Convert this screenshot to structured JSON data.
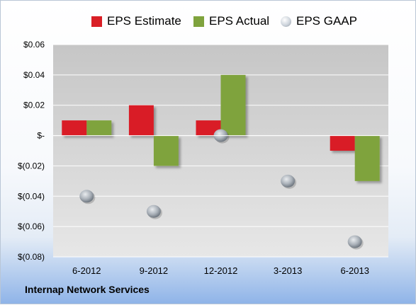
{
  "company": "Internap Network Services",
  "chart_data": {
    "type": "bar",
    "categories": [
      "6-2012",
      "9-2012",
      "12-2012",
      "3-2013",
      "6-2013"
    ],
    "series": [
      {
        "name": "EPS Estimate",
        "kind": "bar",
        "color": "#d91f26",
        "values": [
          0.01,
          0.02,
          0.01,
          null,
          -0.01
        ]
      },
      {
        "name": "EPS Actual",
        "kind": "bar",
        "color": "#7fa33d",
        "values": [
          0.01,
          -0.02,
          0.04,
          null,
          -0.03
        ]
      },
      {
        "name": "EPS GAAP",
        "kind": "marker",
        "color": "#b8c0c9",
        "values": [
          -0.04,
          -0.05,
          0.0,
          -0.03,
          -0.07
        ]
      }
    ],
    "ylim": [
      -0.08,
      0.06
    ],
    "yticks": [
      0.06,
      0.04,
      0.02,
      0,
      -0.02,
      -0.04,
      -0.06,
      -0.08
    ],
    "ytick_labels": [
      "$0.06",
      "$0.04",
      "$0.02",
      "$-",
      "$(0.02)",
      "$(0.04)",
      "$(0.06)",
      "$(0.08)"
    ],
    "grid": true,
    "legend_position": "top"
  }
}
